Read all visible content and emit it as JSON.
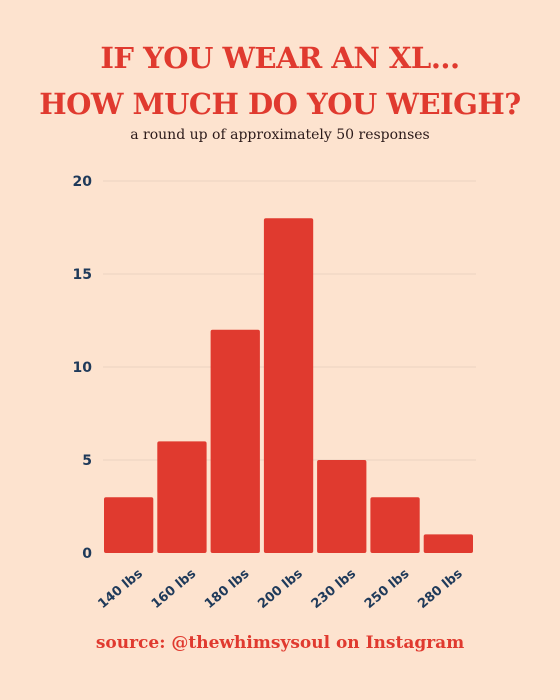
{
  "header": {
    "title_line_1": "IF YOU WEAR AN XL...",
    "title_line_2": "HOW MUCH DO YOU WEIGH?",
    "subtitle": "a round up of approximately 50 responses"
  },
  "footer": {
    "source": "source: @thewhimsysoul on Instagram"
  },
  "colors": {
    "background": "#fde3cf",
    "bar": "#e03a2f",
    "axis_text": "#1f3a5a",
    "grid": "#ead3c2"
  },
  "chart_data": {
    "type": "bar",
    "categories": [
      "140 lbs",
      "160 lbs",
      "180 lbs",
      "200 lbs",
      "230 lbs",
      "250 lbs",
      "280 lbs"
    ],
    "values": [
      3,
      6,
      12,
      18,
      5,
      3,
      1
    ],
    "ylim": [
      0,
      20
    ],
    "yticks": [
      "0",
      "5",
      "10",
      "15",
      "20"
    ],
    "xlabel": "",
    "ylabel": "",
    "grid": true,
    "legend": "none"
  }
}
